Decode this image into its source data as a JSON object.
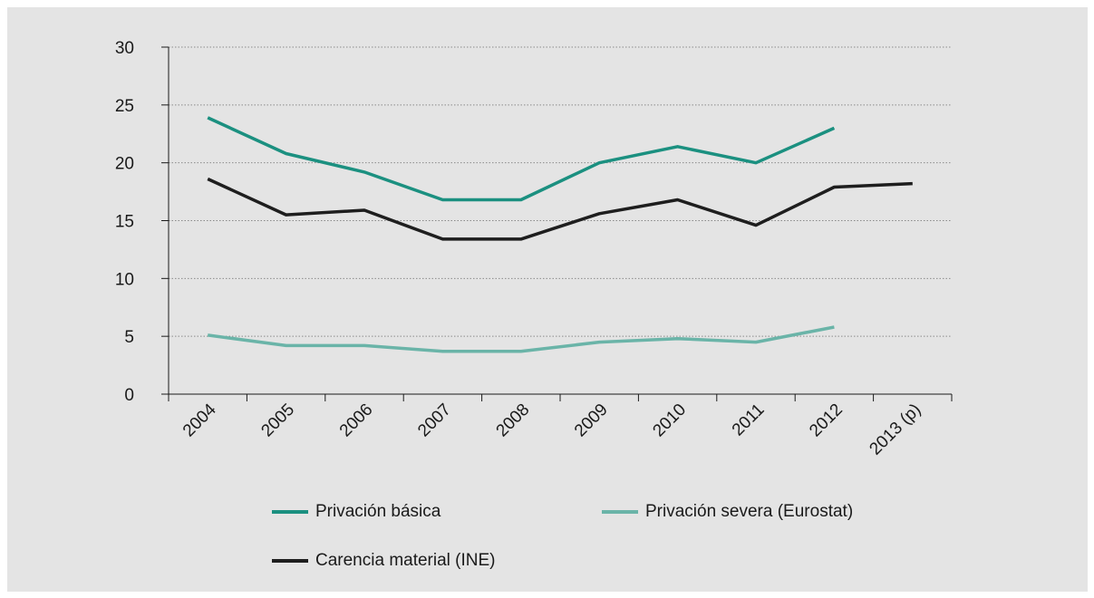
{
  "chart_data": {
    "type": "line",
    "categories": [
      "2004",
      "2005",
      "2006",
      "2007",
      "2008",
      "2009",
      "2010",
      "2011",
      "2012",
      "2013 (p)"
    ],
    "yticks": [
      "0",
      "5",
      "10",
      "15",
      "20",
      "25",
      "30"
    ],
    "ylim": [
      0,
      30
    ],
    "grid": true,
    "legend_position": "bottom",
    "series": [
      {
        "name": "Privación básica",
        "color": "#1b9080",
        "values": [
          23.9,
          20.8,
          19.2,
          16.8,
          16.8,
          20.0,
          21.4,
          20.0,
          23.0,
          null
        ]
      },
      {
        "name": "Privación severa (Eurostat)",
        "color": "#6ab4a8",
        "values": [
          5.1,
          4.2,
          4.2,
          3.7,
          3.7,
          4.5,
          4.8,
          4.5,
          5.8,
          null
        ]
      },
      {
        "name": "Carencia material (INE)",
        "color": "#1e1e1e",
        "values": [
          18.6,
          15.5,
          15.9,
          13.4,
          13.4,
          15.6,
          16.8,
          14.6,
          17.9,
          18.2
        ]
      }
    ]
  }
}
